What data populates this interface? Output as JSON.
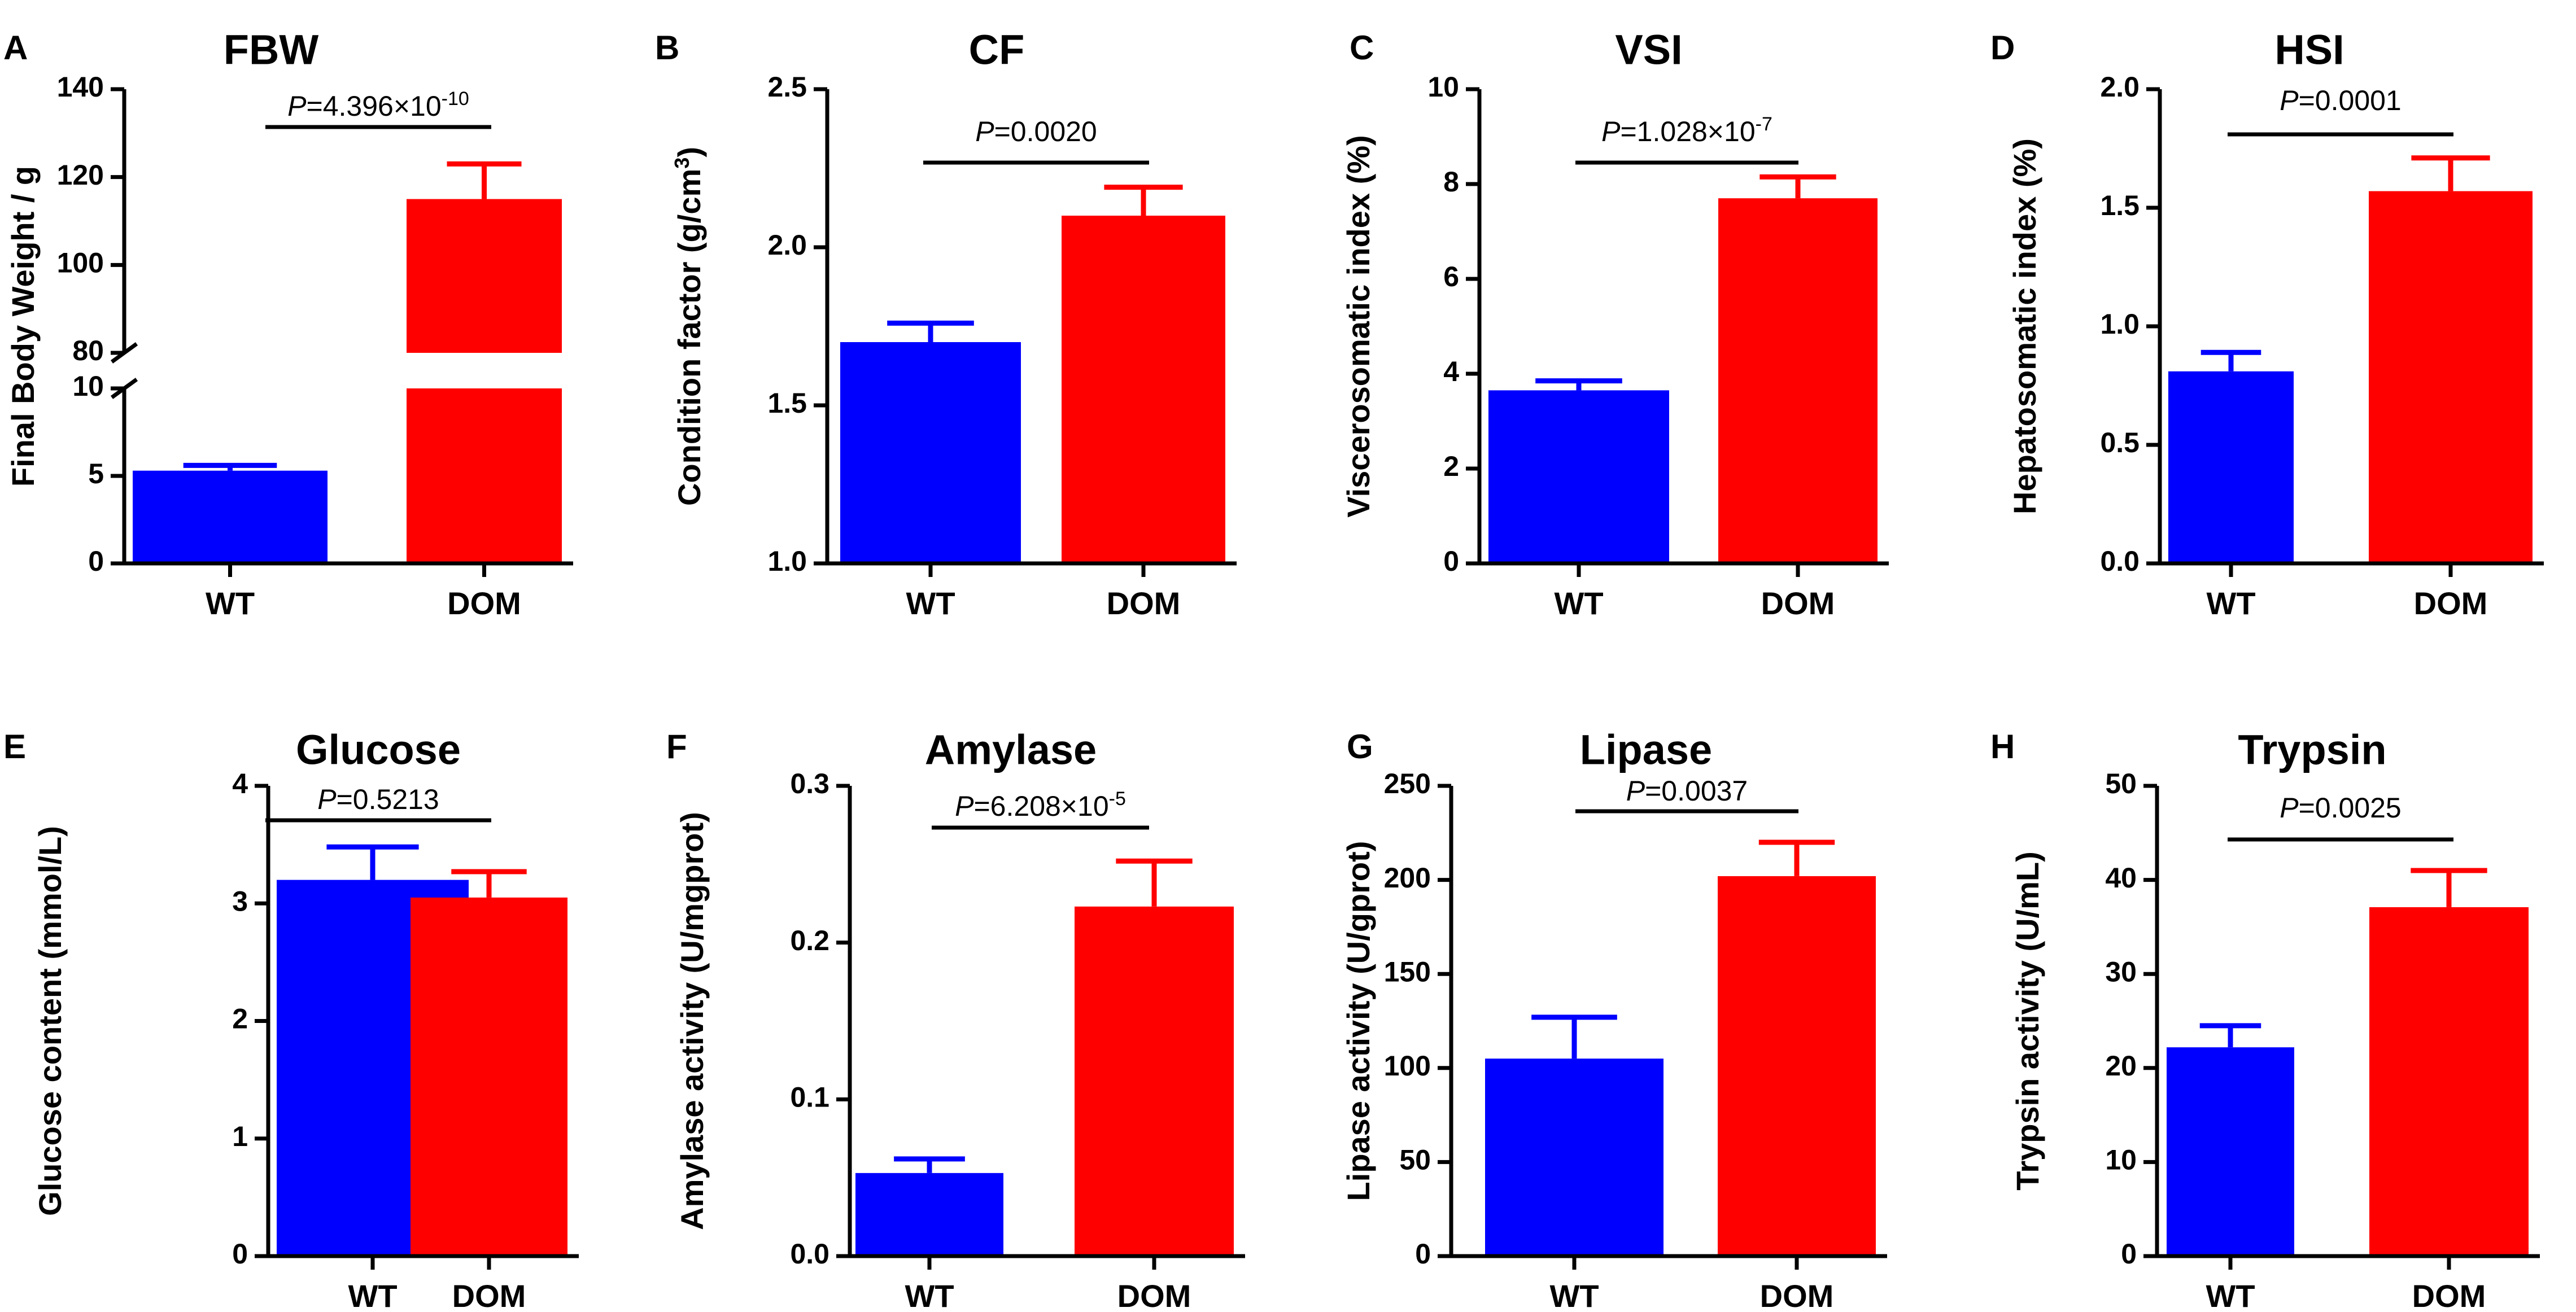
{
  "colors": {
    "WT": "#0000FF",
    "DOM": "#FF0000",
    "axis": "#000000"
  },
  "chart_data": [
    {
      "panel": "A",
      "type": "bar",
      "title": "FBW",
      "ylabel": "Final Body Weight / g",
      "categories": [
        "WT",
        "DOM"
      ],
      "values": [
        5.3,
        115
      ],
      "errors": [
        0.3,
        8
      ],
      "pvalue": {
        "prefix": "=4.396×10",
        "exp": "-10"
      },
      "ylim": [
        0,
        140
      ],
      "broken_axis": {
        "lower": [
          0,
          10
        ],
        "upper": [
          80,
          140
        ],
        "break_labels": [
          "10",
          "80"
        ]
      },
      "yticks": [
        "0",
        "5",
        "100",
        "120",
        "140"
      ]
    },
    {
      "panel": "B",
      "type": "bar",
      "title": "CF",
      "ylabel": "Condition factor (g/cm",
      "ylabel_sup": "3",
      "ylabel_end": ")",
      "categories": [
        "WT",
        "DOM"
      ],
      "values": [
        1.7,
        2.1
      ],
      "errors": [
        0.06,
        0.09
      ],
      "pvalue": {
        "prefix": "=0.0020"
      },
      "ylim": [
        1.0,
        2.5
      ],
      "yticks": [
        "1.0",
        "1.5",
        "2.0",
        "2.5"
      ]
    },
    {
      "panel": "C",
      "type": "bar",
      "title": "VSI",
      "ylabel": "Viscerosomatic index (%)",
      "categories": [
        "WT",
        "DOM"
      ],
      "values": [
        3.65,
        7.7
      ],
      "errors": [
        0.2,
        0.45
      ],
      "pvalue": {
        "prefix": "=1.028×10",
        "exp": "-7"
      },
      "ylim": [
        0,
        10
      ],
      "yticks": [
        "0",
        "2",
        "4",
        "6",
        "8",
        "10"
      ]
    },
    {
      "panel": "D",
      "type": "bar",
      "title": "HSI",
      "ylabel": "Hepatosomatic index (%)",
      "categories": [
        "WT",
        "DOM"
      ],
      "values": [
        0.81,
        1.57
      ],
      "errors": [
        0.08,
        0.14
      ],
      "pvalue": {
        "prefix": "=0.0001"
      },
      "ylim": [
        0,
        2.0
      ],
      "yticks": [
        "0.0",
        "0.5",
        "1.0",
        "1.5",
        "2.0"
      ]
    },
    {
      "panel": "E",
      "type": "bar",
      "title": "Glucose",
      "ylabel": "Glucose content (mmol/L)",
      "categories": [
        "WT",
        "DOM"
      ],
      "values": [
        3.2,
        3.05
      ],
      "errors": [
        0.28,
        0.22
      ],
      "pvalue": {
        "prefix": "=0.5213"
      },
      "ylim": [
        0,
        4
      ],
      "yticks": [
        "0",
        "1",
        "2",
        "3",
        "4"
      ]
    },
    {
      "panel": "F",
      "type": "bar",
      "title": "Amylase",
      "ylabel": "Amylase activity (U/mgprot)",
      "categories": [
        "WT",
        "DOM"
      ],
      "values": [
        0.053,
        0.223
      ],
      "errors": [
        0.009,
        0.029
      ],
      "pvalue": {
        "prefix": "=6.208×10",
        "exp": "-5"
      },
      "ylim": [
        0,
        0.3
      ],
      "yticks": [
        "0.0",
        "0.1",
        "0.2",
        "0.3"
      ]
    },
    {
      "panel": "G",
      "type": "bar",
      "title": "Lipase",
      "ylabel": "Lipase activity (U/gprot)",
      "categories": [
        "WT",
        "DOM"
      ],
      "values": [
        105,
        202
      ],
      "errors": [
        22,
        18
      ],
      "pvalue": {
        "prefix": "=0.0037"
      },
      "ylim": [
        0,
        250
      ],
      "yticks": [
        "0",
        "50",
        "100",
        "150",
        "200",
        "250"
      ]
    },
    {
      "panel": "H",
      "type": "bar",
      "title": "Trypsin",
      "ylabel": "Trypsin activity (U/mL)",
      "categories": [
        "WT",
        "DOM"
      ],
      "values": [
        22.2,
        37.1
      ],
      "errors": [
        2.3,
        3.9
      ],
      "pvalue": {
        "prefix": "=0.0025"
      },
      "ylim": [
        0,
        50
      ],
      "yticks": [
        "0",
        "10",
        "20",
        "30",
        "40",
        "50"
      ]
    }
  ]
}
